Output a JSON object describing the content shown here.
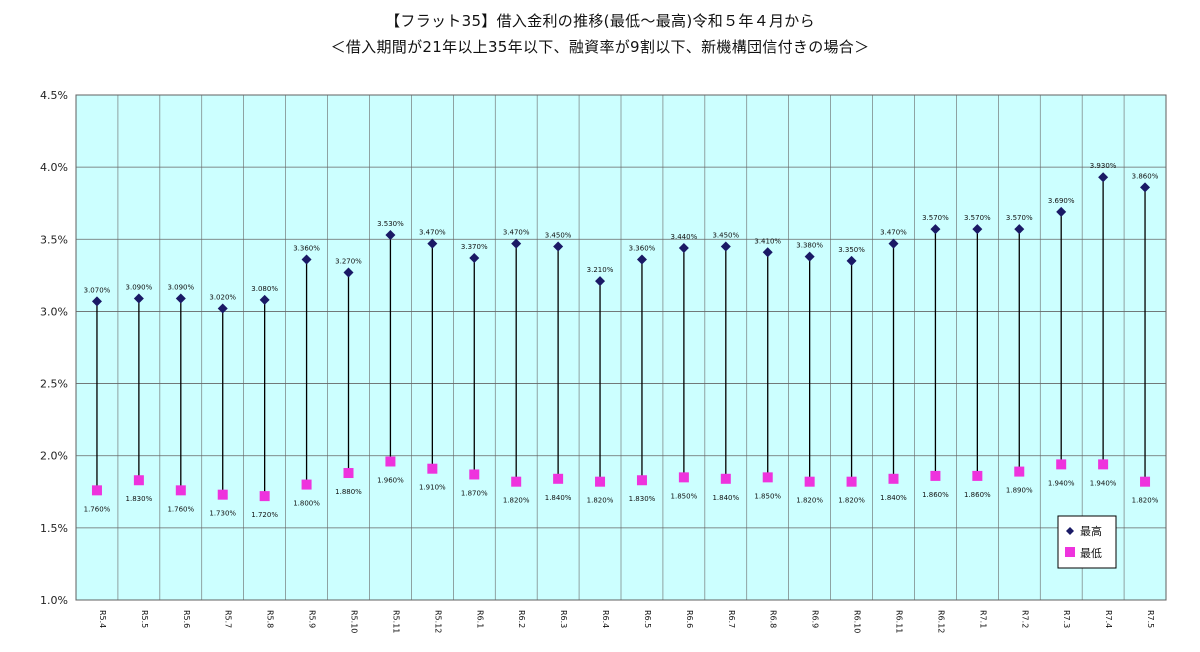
{
  "chart_data": {
    "type": "line",
    "title": "【フラット35】借入金利の推移(最低～最高)令和５年４月から",
    "subtitle": "＜借入期間が21年以上35年以下、融資率が9割以下、新機構団信付きの場合＞",
    "xlabel": "",
    "ylabel": "",
    "ylim": [
      1.0,
      4.5
    ],
    "yticks": [
      "1.0%",
      "1.5%",
      "2.0%",
      "2.5%",
      "3.0%",
      "3.5%",
      "4.0%",
      "4.5%"
    ],
    "grid": true,
    "legend_position": "bottom-right",
    "colors": {
      "plot_bg": "#ccffff",
      "high": "#1a1a66",
      "low": "#ee33dd",
      "line": "#000000",
      "grid": "#666666"
    },
    "categories": [
      "R5.4",
      "R5.5",
      "R5.6",
      "R5.7",
      "R5.8",
      "R5.9",
      "R5.10",
      "R5.11",
      "R5.12",
      "R6.1",
      "R6.2",
      "R6.3",
      "R6.4",
      "R6.5",
      "R6.6",
      "R6.7",
      "R6.8",
      "R6.9",
      "R6.10",
      "R6.11",
      "R6.12",
      "R7.1",
      "R7.2",
      "R7.3",
      "R7.4",
      "R7.5"
    ],
    "series": [
      {
        "name": "最高",
        "values": [
          3.07,
          3.09,
          3.09,
          3.02,
          3.08,
          3.36,
          3.27,
          3.53,
          3.47,
          3.37,
          3.47,
          3.45,
          3.21,
          3.36,
          3.44,
          3.45,
          3.41,
          3.38,
          3.35,
          3.47,
          3.57,
          3.57,
          3.57,
          3.69,
          3.93,
          3.86
        ],
        "labels": [
          "3.070%",
          "3.090%",
          "3.090%",
          "3.020%",
          "3.080%",
          "3.360%",
          "3.270%",
          "3.530%",
          "3.470%",
          "3.370%",
          "3.470%",
          "3.450%",
          "3.210%",
          "3.360%",
          "3.440%",
          "3.450%",
          "3.410%",
          "3.380%",
          "3.350%",
          "3.470%",
          "3.570%",
          "3.570%",
          "3.570%",
          "3.690%",
          "3.930%",
          "3.860%"
        ]
      },
      {
        "name": "最低",
        "values": [
          1.76,
          1.83,
          1.76,
          1.73,
          1.72,
          1.8,
          1.88,
          1.96,
          1.91,
          1.87,
          1.82,
          1.84,
          1.82,
          1.83,
          1.85,
          1.84,
          1.85,
          1.82,
          1.82,
          1.84,
          1.86,
          1.86,
          1.89,
          1.94,
          1.94,
          1.82
        ],
        "labels": [
          "1.760%",
          "1.830%",
          "1.760%",
          "1.730%",
          "1.720%",
          "1.800%",
          "1.880%",
          "1.960%",
          "1.910%",
          "1.870%",
          "1.820%",
          "1.840%",
          "1.820%",
          "1.830%",
          "1.850%",
          "1.840%",
          "1.850%",
          "1.820%",
          "1.820%",
          "1.840%",
          "1.860%",
          "1.860%",
          "1.890%",
          "1.940%",
          "1.940%",
          "1.820%"
        ]
      }
    ]
  }
}
